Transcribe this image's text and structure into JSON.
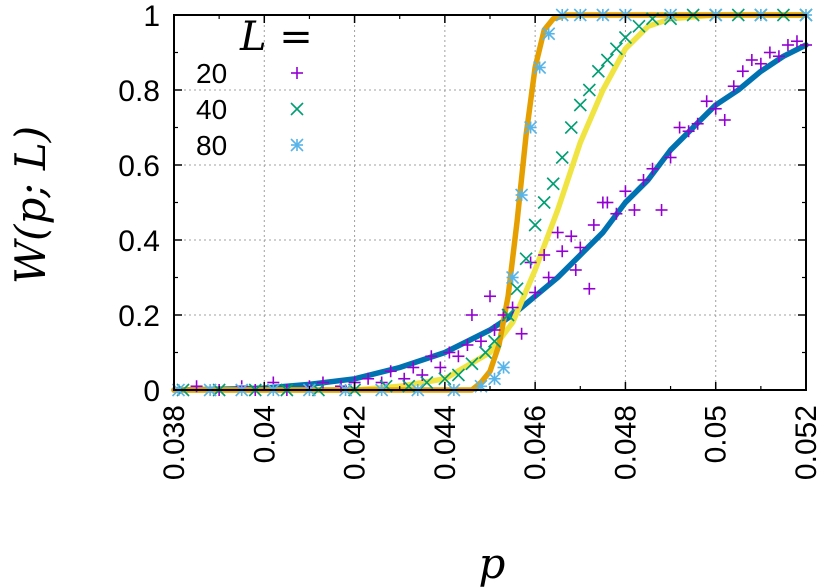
{
  "chart_data": {
    "type": "scatter",
    "title": "",
    "xlabel": "p",
    "ylabel": "W(p; L)",
    "xlim": [
      0.038,
      0.052
    ],
    "ylim": [
      0,
      1
    ],
    "xticks": [
      "0.038",
      "0.04",
      "0.042",
      "0.044",
      "0.046",
      "0.048",
      "0.05",
      "0.052"
    ],
    "yticks": [
      "0",
      "0.2",
      "0.4",
      "0.6",
      "0.8",
      "1"
    ],
    "grid": true,
    "legend": {
      "title": "L =",
      "placement": "top-left"
    },
    "series": [
      {
        "name": "20",
        "marker": "plus",
        "color": "#9400d3",
        "fit_color": "#0072b2",
        "points": [
          [
            0.0381,
            0.0
          ],
          [
            0.0385,
            0.01
          ],
          [
            0.039,
            0.0
          ],
          [
            0.0395,
            0.01
          ],
          [
            0.0398,
            0.0
          ],
          [
            0.0402,
            0.02
          ],
          [
            0.0405,
            0.0
          ],
          [
            0.041,
            0.01
          ],
          [
            0.0413,
            0.02
          ],
          [
            0.0417,
            0.01
          ],
          [
            0.042,
            0.02
          ],
          [
            0.0423,
            0.03
          ],
          [
            0.0426,
            0.02
          ],
          [
            0.0428,
            0.05
          ],
          [
            0.0431,
            0.03
          ],
          [
            0.0433,
            0.06
          ],
          [
            0.0435,
            0.04
          ],
          [
            0.0437,
            0.09
          ],
          [
            0.0439,
            0.06
          ],
          [
            0.0441,
            0.1
          ],
          [
            0.0443,
            0.09
          ],
          [
            0.0445,
            0.12
          ],
          [
            0.0446,
            0.2
          ],
          [
            0.0448,
            0.13
          ],
          [
            0.045,
            0.25
          ],
          [
            0.0451,
            0.16
          ],
          [
            0.0453,
            0.2
          ],
          [
            0.0455,
            0.22
          ],
          [
            0.0457,
            0.15
          ],
          [
            0.0459,
            0.34
          ],
          [
            0.046,
            0.26
          ],
          [
            0.0462,
            0.36
          ],
          [
            0.0463,
            0.3
          ],
          [
            0.0465,
            0.42
          ],
          [
            0.0466,
            0.37
          ],
          [
            0.0468,
            0.41
          ],
          [
            0.0469,
            0.32
          ],
          [
            0.047,
            0.38
          ],
          [
            0.0472,
            0.27
          ],
          [
            0.0473,
            0.44
          ],
          [
            0.0475,
            0.5
          ],
          [
            0.0476,
            0.5
          ],
          [
            0.0478,
            0.47
          ],
          [
            0.048,
            0.53
          ],
          [
            0.0482,
            0.48
          ],
          [
            0.0484,
            0.56
          ],
          [
            0.0486,
            0.59
          ],
          [
            0.0488,
            0.48
          ],
          [
            0.049,
            0.62
          ],
          [
            0.0492,
            0.7
          ],
          [
            0.0494,
            0.69
          ],
          [
            0.0496,
            0.71
          ],
          [
            0.0498,
            0.77
          ],
          [
            0.05,
            0.75
          ],
          [
            0.0502,
            0.72
          ],
          [
            0.0504,
            0.81
          ],
          [
            0.0506,
            0.85
          ],
          [
            0.0508,
            0.88
          ],
          [
            0.051,
            0.87
          ],
          [
            0.0512,
            0.9
          ],
          [
            0.0514,
            0.89
          ],
          [
            0.0516,
            0.92
          ],
          [
            0.0518,
            0.93
          ],
          [
            0.052,
            0.92
          ]
        ],
        "fit": [
          [
            0.038,
            0.0
          ],
          [
            0.039,
            0.002
          ],
          [
            0.04,
            0.005
          ],
          [
            0.041,
            0.015
          ],
          [
            0.042,
            0.03
          ],
          [
            0.043,
            0.06
          ],
          [
            0.044,
            0.1
          ],
          [
            0.045,
            0.16
          ],
          [
            0.0455,
            0.2
          ],
          [
            0.046,
            0.25
          ],
          [
            0.0465,
            0.3
          ],
          [
            0.047,
            0.36
          ],
          [
            0.0475,
            0.42
          ],
          [
            0.048,
            0.5
          ],
          [
            0.0485,
            0.56
          ],
          [
            0.049,
            0.64
          ],
          [
            0.0495,
            0.7
          ],
          [
            0.05,
            0.76
          ],
          [
            0.0505,
            0.8
          ],
          [
            0.051,
            0.85
          ],
          [
            0.0515,
            0.89
          ],
          [
            0.052,
            0.92
          ]
        ]
      },
      {
        "name": "40",
        "marker": "cross",
        "color": "#009e73",
        "fit_color": "#f0e442",
        "points": [
          [
            0.0382,
            0.0
          ],
          [
            0.039,
            0.0
          ],
          [
            0.0398,
            0.0
          ],
          [
            0.0405,
            0.0
          ],
          [
            0.0412,
            0.0
          ],
          [
            0.042,
            0.0
          ],
          [
            0.0427,
            0.01
          ],
          [
            0.0432,
            0.01
          ],
          [
            0.0436,
            0.02
          ],
          [
            0.044,
            0.03
          ],
          [
            0.0443,
            0.04
          ],
          [
            0.0446,
            0.07
          ],
          [
            0.0449,
            0.1
          ],
          [
            0.0451,
            0.13
          ],
          [
            0.0454,
            0.2
          ],
          [
            0.0456,
            0.27
          ],
          [
            0.0458,
            0.35
          ],
          [
            0.046,
            0.44
          ],
          [
            0.0462,
            0.5
          ],
          [
            0.0464,
            0.55
          ],
          [
            0.0466,
            0.62
          ],
          [
            0.0468,
            0.7
          ],
          [
            0.047,
            0.76
          ],
          [
            0.0472,
            0.8
          ],
          [
            0.0474,
            0.85
          ],
          [
            0.0476,
            0.88
          ],
          [
            0.0478,
            0.91
          ],
          [
            0.048,
            0.94
          ],
          [
            0.0483,
            0.97
          ],
          [
            0.0486,
            0.99
          ],
          [
            0.049,
            0.99
          ],
          [
            0.0495,
            1.0
          ],
          [
            0.05,
            1.0
          ],
          [
            0.0505,
            1.0
          ],
          [
            0.051,
            1.0
          ],
          [
            0.0515,
            1.0
          ],
          [
            0.052,
            1.0
          ]
        ],
        "fit": [
          [
            0.038,
            0.0
          ],
          [
            0.042,
            0.0
          ],
          [
            0.043,
            0.01
          ],
          [
            0.044,
            0.03
          ],
          [
            0.045,
            0.1
          ],
          [
            0.0455,
            0.18
          ],
          [
            0.046,
            0.32
          ],
          [
            0.0465,
            0.48
          ],
          [
            0.047,
            0.66
          ],
          [
            0.0475,
            0.8
          ],
          [
            0.048,
            0.91
          ],
          [
            0.0485,
            0.97
          ],
          [
            0.049,
            0.99
          ],
          [
            0.05,
            1.0
          ],
          [
            0.052,
            1.0
          ]
        ]
      },
      {
        "name": "80",
        "marker": "star",
        "color": "#56b4e9",
        "fit_color": "#e69f00",
        "points": [
          [
            0.0381,
            0.0
          ],
          [
            0.0388,
            0.0
          ],
          [
            0.0395,
            0.0
          ],
          [
            0.0402,
            0.0
          ],
          [
            0.041,
            0.0
          ],
          [
            0.0418,
            0.0
          ],
          [
            0.0426,
            0.0
          ],
          [
            0.0434,
            0.0
          ],
          [
            0.0442,
            0.0
          ],
          [
            0.0448,
            0.01
          ],
          [
            0.0451,
            0.03
          ],
          [
            0.0453,
            0.06
          ],
          [
            0.0455,
            0.3
          ],
          [
            0.0457,
            0.52
          ],
          [
            0.0459,
            0.7
          ],
          [
            0.0461,
            0.86
          ],
          [
            0.0463,
            0.95
          ],
          [
            0.0466,
            1.0
          ],
          [
            0.047,
            1.0
          ],
          [
            0.0475,
            1.0
          ],
          [
            0.048,
            1.0
          ],
          [
            0.049,
            1.0
          ],
          [
            0.05,
            1.0
          ],
          [
            0.051,
            1.0
          ],
          [
            0.052,
            1.0
          ]
        ],
        "fit": [
          [
            0.038,
            0.0
          ],
          [
            0.0446,
            0.0
          ],
          [
            0.0448,
            0.02
          ],
          [
            0.045,
            0.05
          ],
          [
            0.0452,
            0.12
          ],
          [
            0.0454,
            0.25
          ],
          [
            0.0456,
            0.45
          ],
          [
            0.0458,
            0.68
          ],
          [
            0.046,
            0.86
          ],
          [
            0.0462,
            0.96
          ],
          [
            0.0464,
            0.99
          ],
          [
            0.0467,
            1.0
          ],
          [
            0.052,
            1.0
          ]
        ]
      }
    ]
  }
}
